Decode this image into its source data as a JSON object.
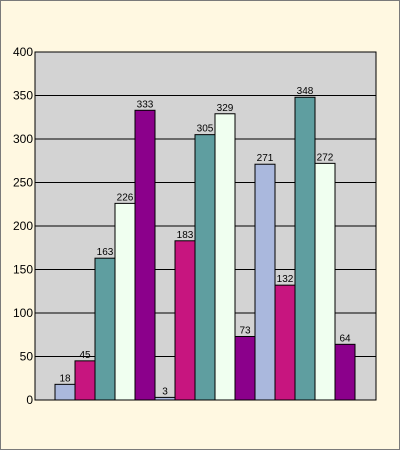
{
  "chart_data": {
    "type": "bar",
    "title": "",
    "xlabel": "",
    "ylabel": "",
    "ylim": [
      0,
      400
    ],
    "yticks": [
      0,
      50,
      100,
      150,
      200,
      250,
      300,
      350,
      400
    ],
    "grid": "horizontal",
    "legend": "none",
    "plot_background": "#d3d3d3",
    "series": [
      {
        "color": "#aab8dd",
        "values": [
          18,
          3,
          271
        ]
      },
      {
        "color": "#c7157f",
        "values": [
          45,
          183,
          132
        ]
      },
      {
        "color": "#5f9ea0",
        "values": [
          163,
          305,
          348
        ]
      },
      {
        "color": "#f0fff0",
        "values": [
          226,
          329,
          272
        ]
      },
      {
        "color": "#8b008b",
        "values": [
          333,
          73,
          64
        ]
      }
    ]
  }
}
